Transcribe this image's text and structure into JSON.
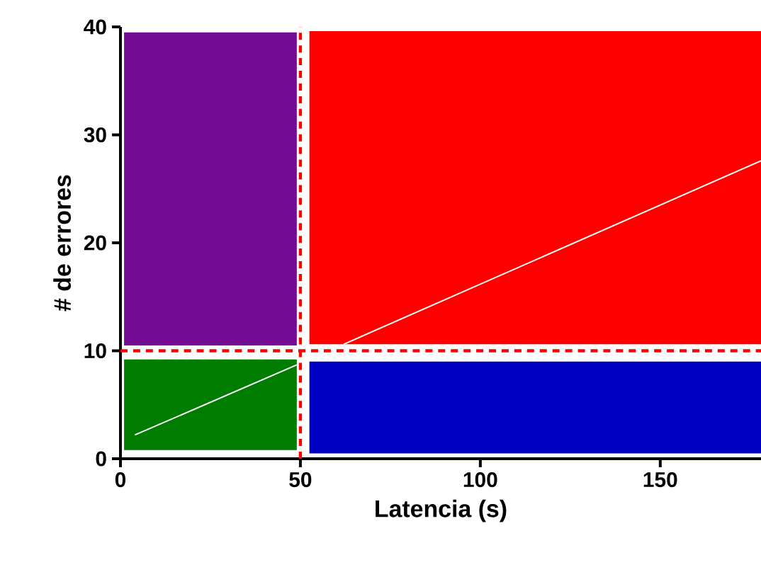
{
  "chart_data": {
    "type": "line",
    "xlabel": "Latencia (s)",
    "ylabel": "# de errores",
    "xlim": [
      0,
      178
    ],
    "ylim": [
      0,
      40
    ],
    "xticks": [
      0,
      50,
      100,
      150
    ],
    "yticks": [
      0,
      10,
      20,
      30,
      40
    ],
    "grid": false,
    "marker": "none",
    "series": [
      {
        "color": "#750b92",
        "x": [
          1,
          49
        ],
        "values": [
          null,
          null
        ],
        "lower": [
          10.5,
          10.5
        ],
        "upper": [
          39.5,
          39.5
        ]
      },
      {
        "color": "#ff0000",
        "x": [
          52.5,
          178
        ],
        "values": [
          null,
          null
        ],
        "lower": [
          10.6,
          10.6
        ],
        "upper": [
          39.6,
          39.6
        ]
      },
      {
        "color": "#007c00",
        "x": [
          1,
          49
        ],
        "values": [
          null,
          null
        ],
        "lower": [
          0.8,
          0.8
        ],
        "upper": [
          9.2,
          9.2
        ]
      },
      {
        "color": "#0000c4",
        "x": [
          52.5,
          178
        ],
        "values": [
          null,
          null
        ],
        "lower": [
          0.5,
          0.5
        ],
        "upper": [
          9,
          9
        ]
      },
      {
        "color": "#ffffff",
        "line_style": "solid",
        "x": [
          4,
          49,
          55,
          62,
          178
        ],
        "values": [
          2.2,
          8.7,
          null,
          10.6,
          27.6
        ]
      }
    ],
    "ref_lines": [
      {
        "axis": "x",
        "value": 50,
        "color": "#ff0000",
        "line_style": "dashed"
      },
      {
        "axis": "y",
        "value": 10,
        "color": "#ff0000",
        "line_style": "dashed"
      }
    ]
  }
}
